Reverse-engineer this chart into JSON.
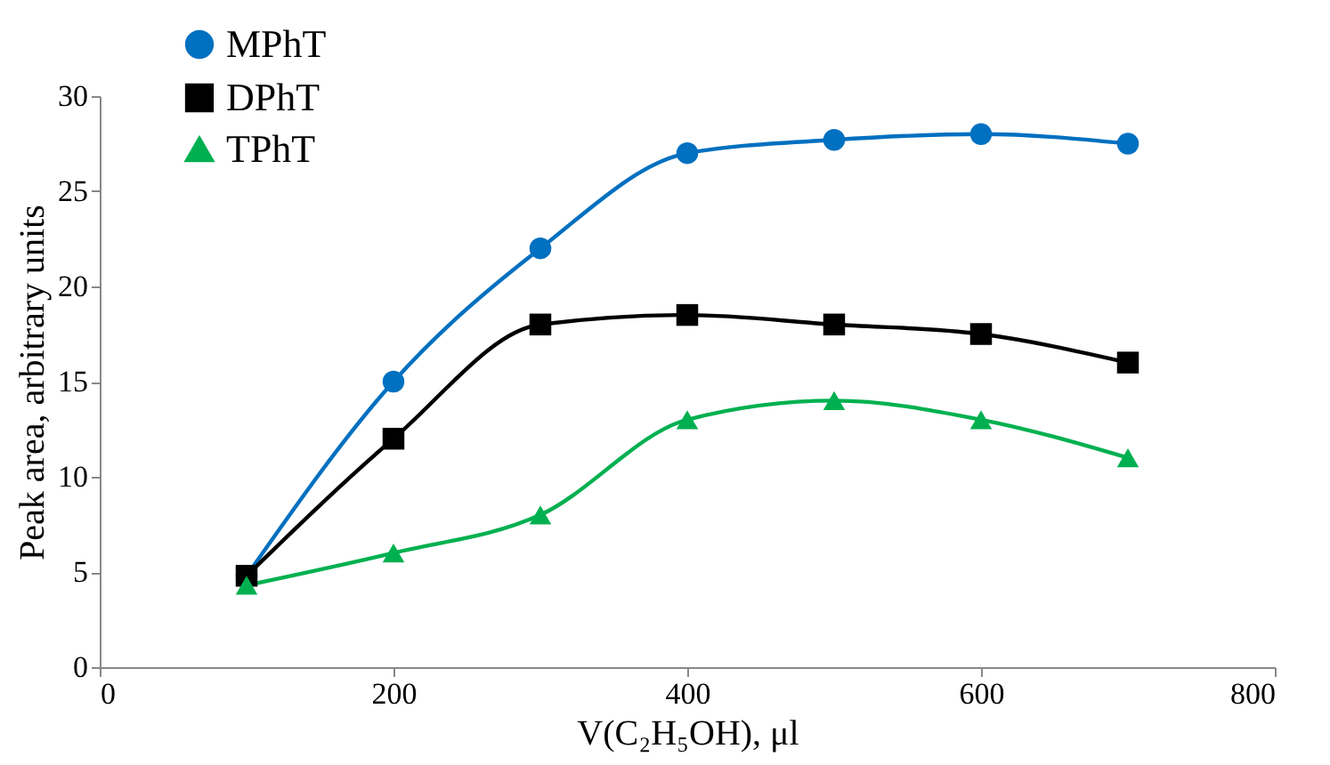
{
  "chart_data": {
    "type": "line",
    "xlabel": "V(C₂H₅OH), μl",
    "ylabel": "Peak area, arbitrary units",
    "x": [
      100,
      200,
      300,
      400,
      500,
      600,
      700
    ],
    "series": [
      {
        "name": "MPhT",
        "color": "#0070c0",
        "marker": "circle",
        "values": [
          4.8,
          15,
          22,
          27,
          27.7,
          28,
          27.5
        ]
      },
      {
        "name": "DPhT",
        "color": "#000000",
        "marker": "square",
        "values": [
          4.8,
          12,
          18,
          18.5,
          18,
          17.5,
          16
        ]
      },
      {
        "name": "TPhT",
        "color": "#00b050",
        "marker": "triangle",
        "values": [
          4.3,
          6,
          8,
          13,
          14,
          13,
          11
        ]
      }
    ],
    "xlim": [
      0,
      800
    ],
    "xticks": [
      0,
      200,
      400,
      600,
      800
    ],
    "ylim": [
      0,
      30
    ],
    "yticks": [
      0,
      5,
      10,
      15,
      20,
      25,
      30
    ],
    "grid": false,
    "legend": "top left",
    "line_style": "solid"
  }
}
